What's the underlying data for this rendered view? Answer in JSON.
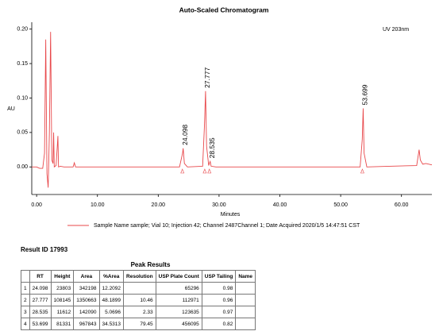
{
  "chart_data": {
    "type": "line",
    "title": "Auto-Scaled Chromatogram",
    "x_label": "Minutes",
    "y_label": "AU",
    "x": [
      -0.8,
      0,
      0.5,
      1.0,
      1.3,
      1.5,
      1.7,
      1.9,
      2.1,
      2.3,
      2.5,
      2.7,
      2.8,
      2.9,
      3.2,
      3.4,
      3.5,
      3.6,
      3.9,
      4.5,
      6.0,
      6.2,
      6.4,
      8,
      15,
      23.5,
      24.0,
      24.1,
      24.3,
      24.8,
      27.3,
      27.6,
      27.78,
      27.95,
      28.3,
      28.45,
      28.54,
      28.7,
      29.5,
      40,
      50,
      53.2,
      53.55,
      53.7,
      53.85,
      54.3,
      58,
      62.5,
      62.9,
      63.1,
      63.5,
      64,
      65
    ],
    "series": [
      {
        "name": "Sample Name sample; Vial 10; Injection 42; Channel 2487Channel 1; Date Acquired 2020/1/5 14:47:51 CST",
        "color": "#e8474a",
        "values": [
          0,
          0,
          -0.002,
          -0.002,
          0.02,
          0.185,
          -0.01,
          -0.03,
          0.05,
          0.196,
          0.01,
          0.005,
          0.05,
          0,
          0.002,
          0.03,
          0.045,
          0,
          0.001,
          0,
          0,
          0.006,
          0,
          0,
          0,
          0,
          0.02,
          0.027,
          0.005,
          0,
          0.001,
          0.06,
          0.11,
          0.03,
          0.002,
          0.006,
          0.008,
          0.001,
          0,
          0,
          0,
          0,
          0.04,
          0.085,
          0.02,
          0,
          0.001,
          0.002,
          0.025,
          0.01,
          0.004,
          0.005,
          0.003
        ]
      }
    ],
    "xlim": [
      -0.8,
      65
    ],
    "ylim": [
      -0.04,
      0.21
    ],
    "xticks": [
      {
        "value": 0,
        "label": "0.00"
      },
      {
        "value": 10,
        "label": "10.00"
      },
      {
        "value": 20,
        "label": "20.00"
      },
      {
        "value": 30,
        "label": "30.00"
      },
      {
        "value": 40,
        "label": "40.00"
      },
      {
        "value": 50,
        "label": "50.00"
      },
      {
        "value": 60,
        "label": "60.00"
      }
    ],
    "yticks": [
      {
        "value": 0,
        "label": "0.00"
      },
      0.05,
      {
        "value": 0.1,
        "label": "0.10"
      },
      0.15,
      {
        "value": 0.2,
        "label": "0.20"
      }
    ],
    "annotations": [
      {
        "text": "24.098",
        "x": 24.098,
        "y": 0.027
      },
      {
        "text": "27.777",
        "x": 27.777,
        "y": 0.11
      },
      {
        "text": "28.535",
        "x": 28.535,
        "y": 0.008
      },
      {
        "text": "53.699",
        "x": 53.699,
        "y": 0.085
      }
    ],
    "detector_label": "UV 203nm",
    "grid": false
  },
  "result_title": "Result ID 17993",
  "table": {
    "title": "Peak Results",
    "header": [
      null,
      "RT",
      "Height",
      "Area",
      "%Area",
      "Resolution",
      "USP Plate Count",
      "USP Tailing",
      "Name"
    ],
    "rows": [
      [
        "1",
        "24.098",
        "23803",
        "342198",
        "12.2092",
        null,
        "65296",
        "0.98",
        null
      ],
      [
        "2",
        "27.777",
        "108145",
        "1350663",
        "48.1899",
        "10.46",
        "112971",
        "0.96",
        null
      ],
      [
        "3",
        "28.535",
        "11612",
        "142090",
        "5.0696",
        "2.33",
        "123635",
        "0.97",
        null
      ],
      [
        "4",
        "53.699",
        "81331",
        "967843",
        "34.5313",
        "79.45",
        "456095",
        "0.82",
        null
      ]
    ]
  }
}
